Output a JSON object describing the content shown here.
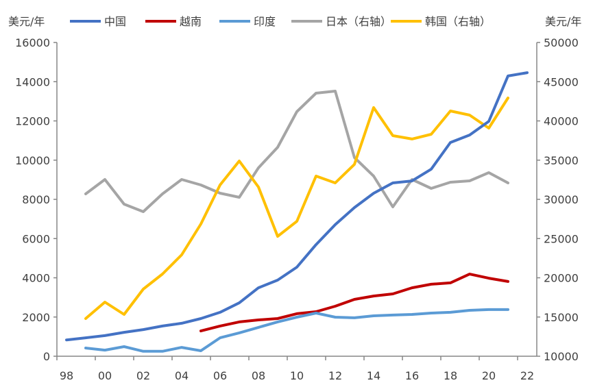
{
  "chart_data": {
    "type": "line",
    "left_unit": "美元/年",
    "right_unit": "美元/年",
    "x": [
      1998,
      1999,
      2000,
      2001,
      2002,
      2003,
      2004,
      2005,
      2006,
      2007,
      2008,
      2009,
      2010,
      2011,
      2012,
      2013,
      2014,
      2015,
      2016,
      2017,
      2018,
      2019,
      2020,
      2021,
      2022
    ],
    "x_tick_labels": [
      "98",
      "00",
      "02",
      "04",
      "06",
      "08",
      "10",
      "12",
      "14",
      "16",
      "18",
      "20",
      "22"
    ],
    "x_tick_years": [
      1998,
      2000,
      2002,
      2004,
      2006,
      2008,
      2010,
      2012,
      2014,
      2016,
      2018,
      2020,
      2022
    ],
    "ylim_left": [
      0,
      16000
    ],
    "ylim_right": [
      10000,
      50000
    ],
    "y_ticks_left": [
      "0",
      "2000",
      "4000",
      "6000",
      "8000",
      "10000",
      "12000",
      "14000",
      "16000"
    ],
    "y_ticks_right": [
      "10000",
      "15000",
      "20000",
      "25000",
      "30000",
      "35000",
      "40000",
      "45000",
      "50000"
    ],
    "grid": false,
    "legend_position": "top",
    "series": [
      {
        "name": "中国",
        "axis": "left",
        "color": "#4472C4",
        "values": [
          830,
          940,
          1050,
          1220,
          1360,
          1540,
          1680,
          1920,
          2240,
          2720,
          3490,
          3880,
          4540,
          5690,
          6710,
          7580,
          8310,
          8840,
          8940,
          9540,
          10900,
          11280,
          11980,
          14290,
          14460
        ]
      },
      {
        "name": "越南",
        "axis": "left",
        "color": "#C00000",
        "values": [
          null,
          null,
          null,
          null,
          null,
          null,
          null,
          1290,
          1540,
          1750,
          1850,
          1920,
          2170,
          2270,
          2550,
          2900,
          3070,
          3180,
          3490,
          3670,
          3740,
          4190,
          3980,
          3810,
          null
        ]
      },
      {
        "name": "印度",
        "axis": "left",
        "color": "#5B9BD5",
        "values": [
          null,
          420,
          310,
          490,
          250,
          250,
          450,
          280,
          940,
          1190,
          1470,
          1750,
          1990,
          2200,
          1990,
          1960,
          2060,
          2100,
          2130,
          2200,
          2240,
          2340,
          2380,
          2380,
          null
        ]
      },
      {
        "name": "日本（右轴）",
        "axis": "right",
        "color": "#A5A5A5",
        "values": [
          null,
          30700,
          32530,
          29390,
          28430,
          30700,
          32530,
          31830,
          30790,
          30260,
          34020,
          36640,
          41180,
          43540,
          43800,
          35330,
          32970,
          29040,
          32530,
          31400,
          32180,
          32360,
          33410,
          32100,
          null
        ]
      },
      {
        "name": "韩国（右轴）",
        "axis": "right",
        "color": "#FFC000",
        "values": [
          null,
          14800,
          16900,
          15330,
          18560,
          20480,
          22930,
          26860,
          31830,
          34890,
          31570,
          25280,
          27200,
          32970,
          32100,
          34460,
          41700,
          38120,
          37690,
          38300,
          41270,
          40740,
          39080,
          42930,
          null
        ]
      }
    ]
  }
}
